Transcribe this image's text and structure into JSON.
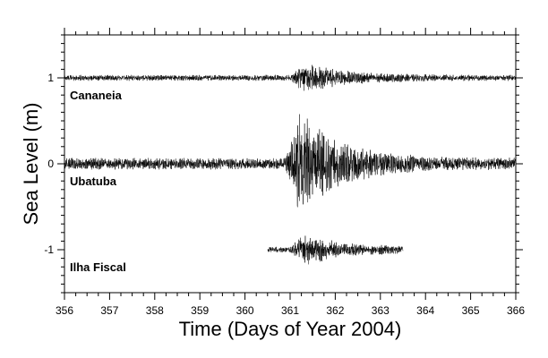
{
  "chart_data": {
    "type": "line",
    "title": "",
    "xlabel": "Time (Days of Year 2004)",
    "ylabel": "Sea Level (m)",
    "xlim": [
      356,
      366
    ],
    "ylim": [
      -1.5,
      1.5
    ],
    "x_ticks": [
      356,
      357,
      358,
      359,
      360,
      361,
      362,
      363,
      364,
      365,
      366
    ],
    "x_tick_labels": [
      "356",
      "357",
      "358",
      "359",
      "360",
      "361",
      "362",
      "363",
      "364",
      "365",
      "366"
    ],
    "y_ticks": [
      -1,
      0,
      1
    ],
    "y_tick_labels": [
      "-1",
      "0",
      "1"
    ],
    "grid": false,
    "legend": "none",
    "line_color": "#000000",
    "series": [
      {
        "name": "Cananeia",
        "offset": 1,
        "x_start": 356,
        "x_end": 366,
        "event_start": 361.0,
        "event_peak": 361.3,
        "background_amplitude": 0.03,
        "peak_amplitude": 0.16
      },
      {
        "name": "Ubatuba",
        "offset": 0,
        "x_start": 356,
        "x_end": 366,
        "event_start": 360.9,
        "event_peak": 361.2,
        "background_amplitude": 0.06,
        "peak_amplitude": 0.55
      },
      {
        "name": "Ilha Fiscal",
        "offset": -1,
        "x_start": 360.5,
        "x_end": 363.5,
        "event_start": 361.0,
        "event_peak": 361.3,
        "background_amplitude": 0.03,
        "peak_amplitude": 0.17
      }
    ]
  }
}
